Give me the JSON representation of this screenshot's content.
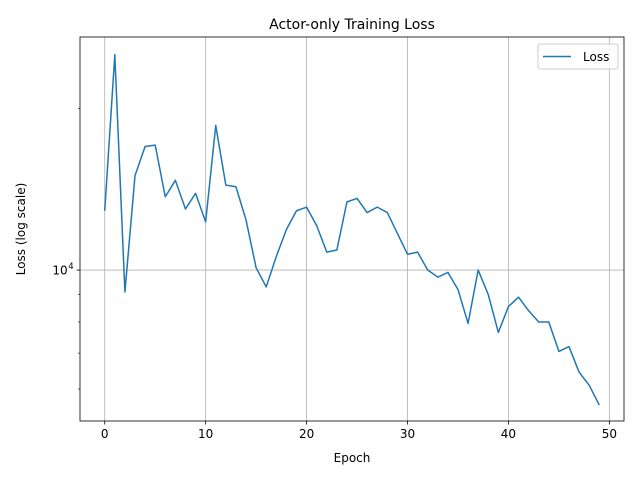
{
  "chart_data": {
    "type": "line",
    "title": "Actor-only Training Loss",
    "xlabel": "Epoch",
    "ylabel": "Loss (log scale)",
    "xlim": [
      -2.45,
      51.45
    ],
    "ylim": [
      5230,
      27200
    ],
    "y_scale": "log",
    "grid": true,
    "legend_position": "top-right",
    "x_ticks": [
      0,
      10,
      20,
      30,
      40,
      50
    ],
    "x_tick_labels": [
      "0",
      "10",
      "20",
      "30",
      "40",
      "50"
    ],
    "y_major_ticks": [
      10000
    ],
    "y_major_tick_labels": [
      "10",
      "4"
    ],
    "y_minor_ticks": [
      6000,
      7000,
      8000,
      9000,
      20000
    ],
    "series": [
      {
        "name": "Loss",
        "color": "#1f77b4",
        "x": [
          0,
          1,
          2,
          3,
          4,
          5,
          6,
          7,
          8,
          9,
          10,
          11,
          12,
          13,
          14,
          15,
          16,
          17,
          18,
          19,
          20,
          21,
          22,
          23,
          24,
          25,
          26,
          27,
          28,
          29,
          30,
          31,
          32,
          33,
          34,
          35,
          36,
          37,
          38,
          39,
          40,
          41,
          42,
          43,
          44,
          45,
          46,
          47,
          48,
          49
        ],
        "y": [
          12900,
          25200,
          9100,
          15000,
          17000,
          17100,
          13700,
          14700,
          13000,
          13900,
          12300,
          18600,
          14400,
          14300,
          12400,
          10100,
          9300,
          10600,
          11900,
          12900,
          13100,
          12100,
          10800,
          10900,
          13400,
          13600,
          12800,
          13100,
          12800,
          11700,
          10700,
          10800,
          10000,
          9700,
          9900,
          9200,
          7950,
          10000,
          9000,
          7650,
          8550,
          8900,
          8400,
          8000,
          8000,
          7050,
          7200,
          6450,
          6100,
          5600
        ]
      }
    ]
  }
}
